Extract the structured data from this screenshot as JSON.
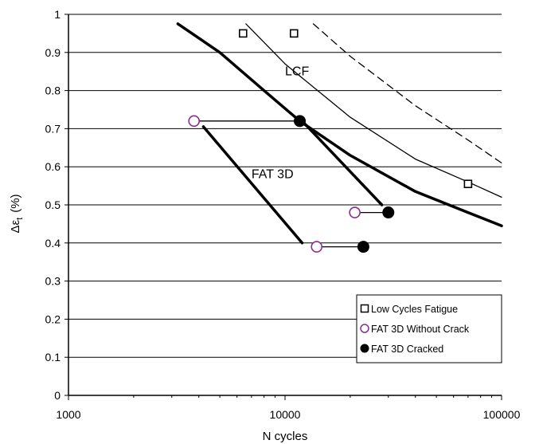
{
  "chart_data": {
    "type": "scatter",
    "x_scale": "log",
    "xlim": [
      1000,
      100000
    ],
    "ylim": [
      0,
      1
    ],
    "x_ticks": [
      "1000",
      "10000",
      "100000"
    ],
    "y_ticks": [
      "0",
      "0.1",
      "0.2",
      "0.3",
      "0.4",
      "0.5",
      "0.6",
      "0.7",
      "0.8",
      "0.9",
      "1"
    ],
    "xlabel": "N  cycles",
    "ylabel_main": "Δε",
    "ylabel_sub": "t",
    "ylabel_unit": "(%)",
    "grid": "horizontal",
    "legend_placement": "bottom-right",
    "annotations": [
      {
        "text": "LCF",
        "x": 10000,
        "y": 0.84
      },
      {
        "text": "FAT 3D",
        "x": 7000,
        "y": 0.57
      }
    ],
    "series": [
      {
        "name": "Low Cycles Fatigue",
        "marker": "open-square",
        "color": "#000000",
        "points": [
          [
            6400,
            0.95
          ],
          [
            11000,
            0.95
          ],
          [
            70000,
            0.555
          ]
        ]
      },
      {
        "name": "FAT 3D Without Crack",
        "marker": "open-circle",
        "color": "#8b2b8e",
        "points": [
          [
            3800,
            0.72
          ],
          [
            21000,
            0.48
          ],
          [
            14000,
            0.39
          ]
        ]
      },
      {
        "name": "FAT 3D Cracked",
        "marker": "filled-circle",
        "color": "#000000",
        "points": [
          [
            11700,
            0.72
          ],
          [
            30000,
            0.48
          ],
          [
            23000,
            0.39
          ]
        ]
      }
    ],
    "curves": [
      {
        "style": "thick",
        "points": [
          [
            3200,
            0.975
          ],
          [
            5000,
            0.9
          ],
          [
            8000,
            0.8
          ],
          [
            11700,
            0.72
          ],
          [
            20000,
            0.63
          ],
          [
            40000,
            0.535
          ],
          [
            70000,
            0.48
          ],
          [
            100000,
            0.445
          ]
        ]
      },
      {
        "style": "thin",
        "points": [
          [
            6600,
            0.975
          ],
          [
            10000,
            0.87
          ],
          [
            20000,
            0.73
          ],
          [
            40000,
            0.62
          ],
          [
            70000,
            0.56
          ],
          [
            100000,
            0.52
          ]
        ]
      },
      {
        "style": "dashed",
        "points": [
          [
            13500,
            0.975
          ],
          [
            20000,
            0.89
          ],
          [
            40000,
            0.76
          ],
          [
            70000,
            0.67
          ],
          [
            100000,
            0.61
          ]
        ]
      },
      {
        "style": "thick",
        "points": [
          [
            4200,
            0.705
          ],
          [
            12000,
            0.4
          ]
        ]
      },
      {
        "style": "thick",
        "points": [
          [
            12000,
            0.72
          ],
          [
            28000,
            0.5
          ]
        ]
      },
      {
        "style": "thin",
        "points": [
          [
            3800,
            0.72
          ],
          [
            11700,
            0.72
          ]
        ]
      },
      {
        "style": "thin",
        "points": [
          [
            21000,
            0.48
          ],
          [
            30000,
            0.48
          ]
        ]
      },
      {
        "style": "thin",
        "points": [
          [
            14000,
            0.39
          ],
          [
            23000,
            0.39
          ]
        ]
      }
    ]
  }
}
